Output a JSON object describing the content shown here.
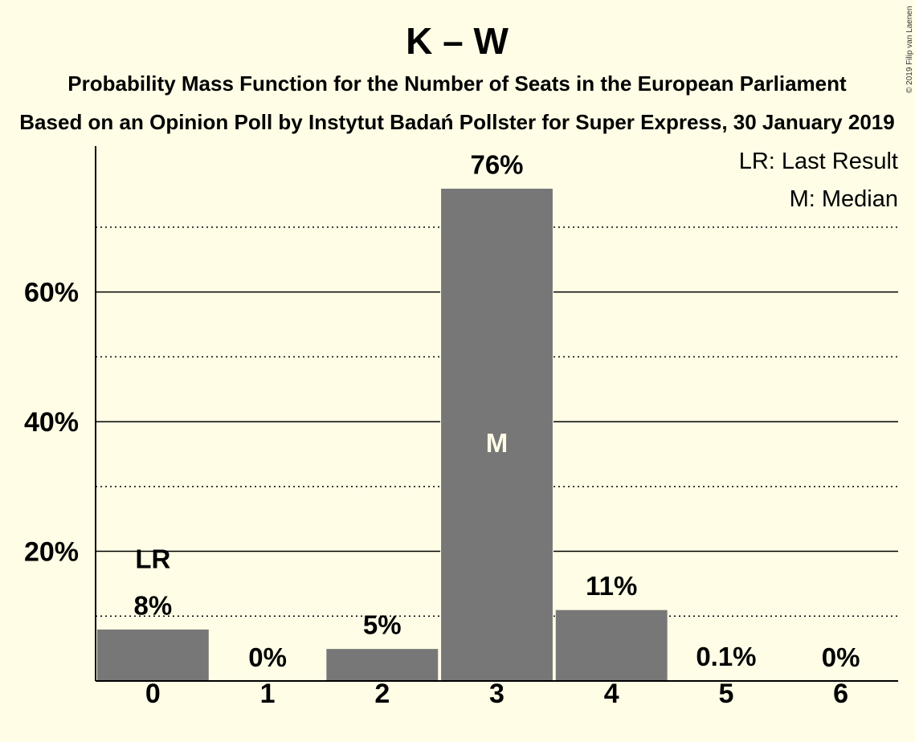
{
  "copyright": "© 2019 Filip van Laenen",
  "chart_data": {
    "type": "bar",
    "title": "K – W",
    "subtitle": "Probability Mass Function for the Number of Seats in the European Parliament",
    "subtitle2": "Based on an Opinion Poll by Instytut Badań Pollster for Super Express, 30 January 2019",
    "categories": [
      "0",
      "1",
      "2",
      "3",
      "4",
      "5",
      "6"
    ],
    "values": [
      8,
      0,
      5,
      76,
      11,
      0.1,
      0
    ],
    "value_labels": [
      "8%",
      "0%",
      "5%",
      "76%",
      "11%",
      "0.1%",
      "0%"
    ],
    "y_ticks": [
      20,
      40,
      60
    ],
    "y_tick_labels": [
      "20%",
      "40%",
      "60%"
    ],
    "y_minor_ticks": [
      10,
      30,
      50,
      70
    ],
    "ylim": [
      0,
      82.5
    ],
    "bar_color": "#777777",
    "last_result_index": 0,
    "last_result_marker": "LR",
    "median_index": 3,
    "median_marker": "M",
    "legend": [
      "LR: Last Result",
      "M: Median"
    ],
    "legend_position": "top-right"
  }
}
